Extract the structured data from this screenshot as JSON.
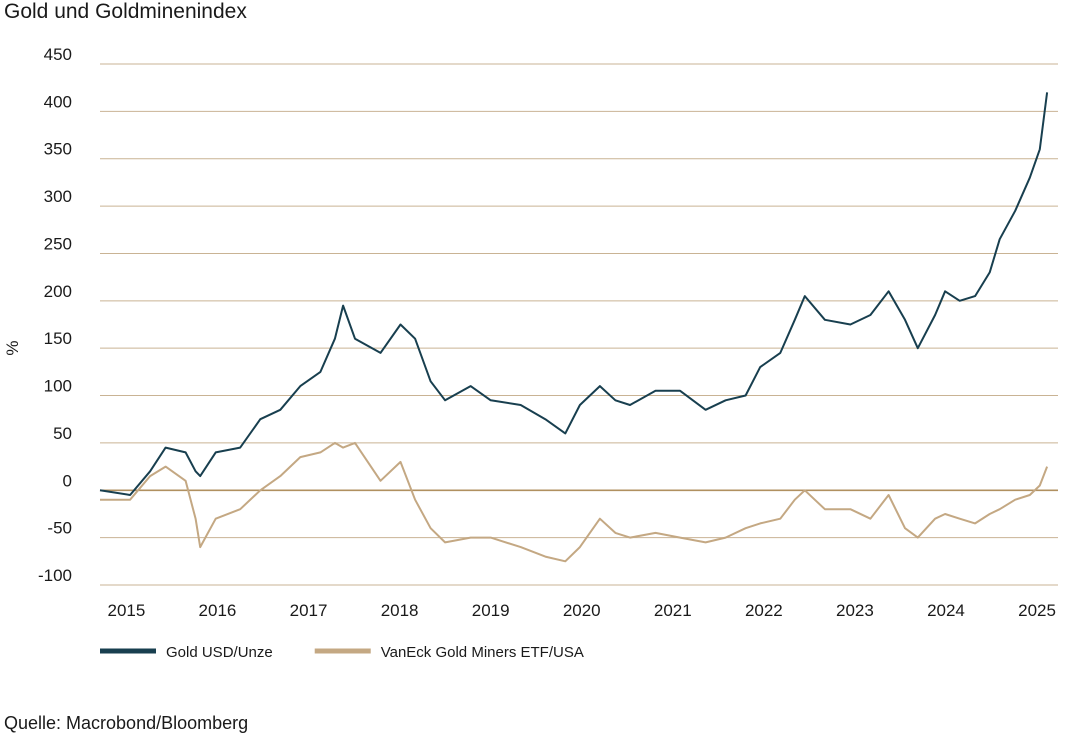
{
  "chart_data": {
    "type": "line",
    "title": "Gold und Goldminenindex",
    "ylabel": "%",
    "source": "Quelle: Macrobond/Bloomberg",
    "x": [
      2014.71,
      2015.04,
      2015.26,
      2015.43,
      2015.65,
      2015.76,
      2015.81,
      2015.98,
      2016.25,
      2016.47,
      2016.69,
      2016.91,
      2017.13,
      2017.29,
      2017.38,
      2017.51,
      2017.79,
      2018.01,
      2018.17,
      2018.34,
      2018.5,
      2018.78,
      2019.0,
      2019.33,
      2019.6,
      2019.82,
      2019.98,
      2020.2,
      2020.37,
      2020.53,
      2020.81,
      2021.08,
      2021.36,
      2021.58,
      2021.8,
      2021.96,
      2022.18,
      2022.34,
      2022.45,
      2022.67,
      2022.95,
      2023.17,
      2023.37,
      2023.55,
      2023.69,
      2023.88,
      2023.99,
      2024.15,
      2024.32,
      2024.48,
      2024.59,
      2024.76,
      2024.92,
      2025.03,
      2025.11
    ],
    "series": [
      {
        "name": "Gold USD/Unze",
        "color": "#183f4f",
        "values": [
          0,
          -5,
          20,
          45,
          40,
          20,
          15,
          40,
          45,
          75,
          85,
          110,
          125,
          160,
          195,
          160,
          145,
          175,
          160,
          115,
          95,
          110,
          95,
          90,
          75,
          60,
          90,
          110,
          95,
          90,
          105,
          105,
          85,
          95,
          100,
          130,
          145,
          180,
          205,
          180,
          175,
          185,
          210,
          180,
          150,
          185,
          210,
          200,
          205,
          230,
          265,
          295,
          330,
          360,
          420
        ]
      },
      {
        "name": "VanEck Gold Miners ETF/USA",
        "color": "#c4a883",
        "values": [
          -10,
          -10,
          15,
          25,
          10,
          -30,
          -60,
          -30,
          -20,
          0,
          15,
          35,
          40,
          50,
          45,
          50,
          10,
          30,
          -10,
          -40,
          -55,
          -50,
          -50,
          -60,
          -70,
          -75,
          -60,
          -30,
          -45,
          -50,
          -45,
          -50,
          -55,
          -50,
          -40,
          -35,
          -30,
          -10,
          0,
          -20,
          -20,
          -30,
          -5,
          -40,
          -50,
          -30,
          -25,
          -30,
          -35,
          -25,
          -20,
          -10,
          -5,
          5,
          25
        ]
      }
    ],
    "xlim": [
      2014.71,
      2025.23
    ],
    "xticks": [
      2015,
      2016,
      2017,
      2018,
      2019,
      2020,
      2021,
      2022,
      2023,
      2024,
      2025
    ],
    "ylim": [
      -100,
      450
    ],
    "yticks": [
      -100,
      -50,
      0,
      50,
      100,
      150,
      200,
      250,
      300,
      350,
      400,
      450
    ],
    "grid": true,
    "legend": "bottom"
  }
}
